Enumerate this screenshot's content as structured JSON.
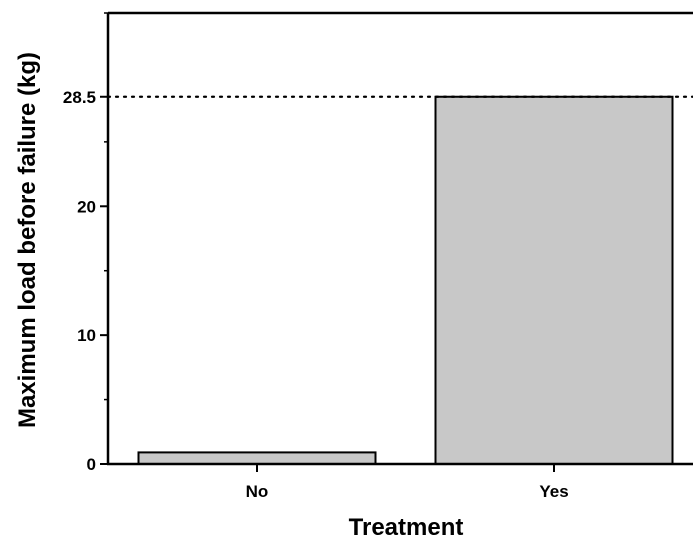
{
  "chart_data": {
    "type": "bar",
    "title": "",
    "xlabel": "Treatment",
    "ylabel": "Maximum load before failure (kg)",
    "categories": [
      "No",
      "Yes"
    ],
    "values": [
      0.9,
      28.5
    ],
    "ylim": [
      0,
      35
    ],
    "yticks": [
      0,
      10,
      20,
      28.5
    ],
    "ytick_labels": [
      "0",
      "10",
      "20",
      "28.5"
    ],
    "reference_line": {
      "value": 28.5,
      "style": "dotted"
    },
    "bar_color": "#c8c8c8",
    "bar_edge_color": "#000000",
    "grid": false
  }
}
